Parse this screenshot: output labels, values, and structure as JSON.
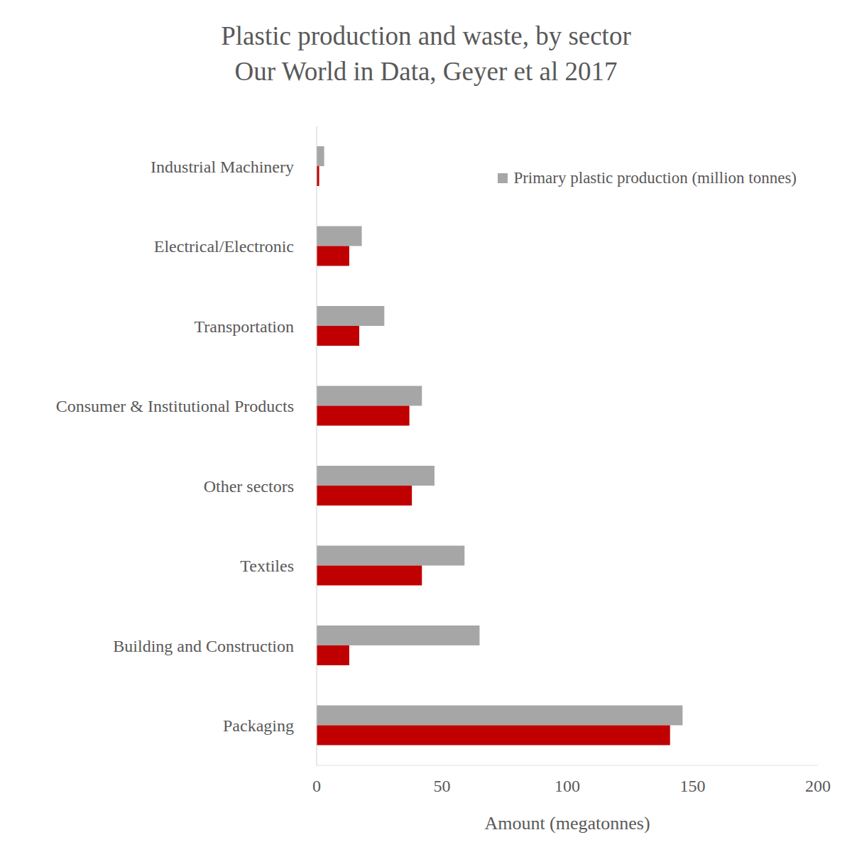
{
  "chart_data": {
    "type": "bar",
    "orientation": "horizontal",
    "title": "Plastic production and waste, by sector",
    "subtitle": "Our World in Data, Geyer et al 2017",
    "x_label": "Amount (megatonnes)",
    "categories": [
      "Industrial Machinery",
      "Electrical/Electronic",
      "Transportation",
      "Consumer & Institutional Products",
      "Other sectors",
      "Textiles",
      "Building and Construction",
      "Packaging"
    ],
    "series": [
      {
        "name": "Primary plastic production (million tonnes)",
        "color": "#a6a6a6",
        "values": [
          3,
          18,
          27,
          42,
          47,
          59,
          65,
          146
        ]
      },
      {
        "color": "#c00000",
        "values": [
          1,
          13,
          17,
          37,
          38,
          42,
          13,
          141
        ]
      }
    ],
    "xlim": [
      0,
      200
    ],
    "xticks": [
      0,
      50,
      100,
      150,
      200
    ],
    "grid": false,
    "legend": "upper right"
  }
}
